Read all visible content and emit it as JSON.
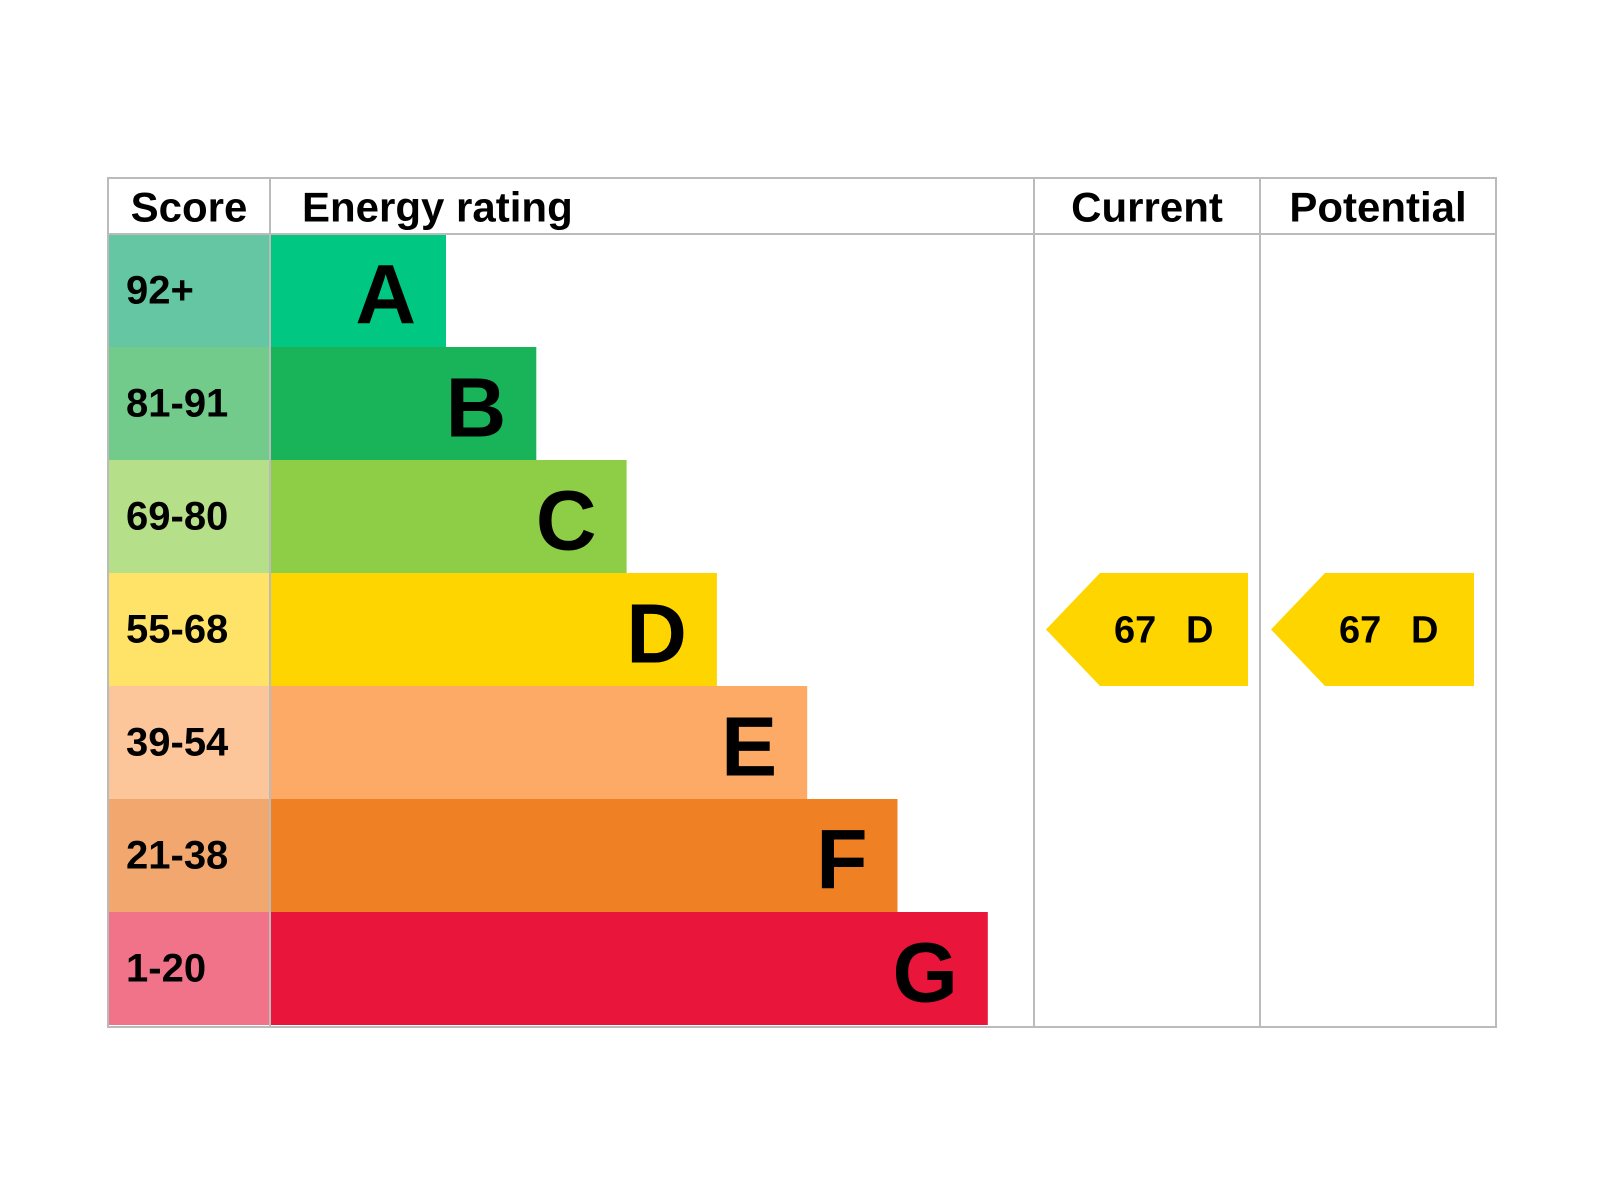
{
  "header": {
    "score": "Score",
    "energy_rating": "Energy rating",
    "current": "Current",
    "potential": "Potential"
  },
  "bands": [
    {
      "score": "92+",
      "letter": "A",
      "color": "#00c781",
      "score_color": "#64c6a3"
    },
    {
      "score": "81-91",
      "letter": "B",
      "color": "#19b459",
      "score_color": "#72ca8b"
    },
    {
      "score": "69-80",
      "letter": "C",
      "color": "#8dce46",
      "score_color": "#b5df88"
    },
    {
      "score": "55-68",
      "letter": "D",
      "color": "#ffd500",
      "score_color": "#ffe368"
    },
    {
      "score": "39-54",
      "letter": "E",
      "color": "#fcaa65",
      "score_color": "#fcc59a"
    },
    {
      "score": "21-38",
      "letter": "F",
      "color": "#ef8023",
      "score_color": "#f2a76e"
    },
    {
      "score": "1-20",
      "letter": "G",
      "color": "#e9153b",
      "score_color": "#f0738a"
    }
  ],
  "current": {
    "value": 67,
    "letter": "D"
  },
  "potential": {
    "value": 67,
    "letter": "D"
  }
}
